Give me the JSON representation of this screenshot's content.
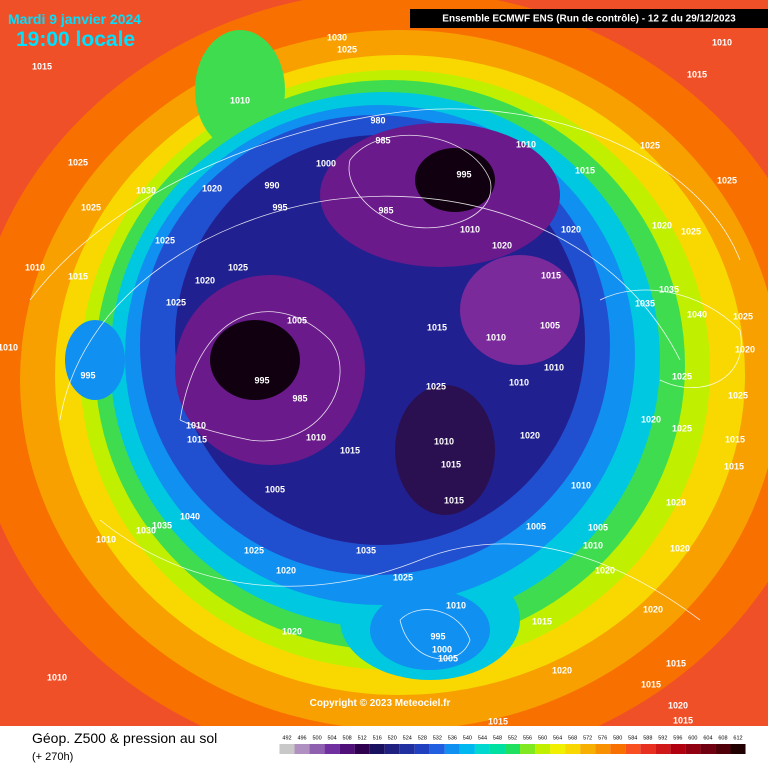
{
  "header": {
    "date": "Mardi 9 janvier 2024",
    "time": "19:00 locale",
    "run": "Ensemble ECMWF ENS  (Run de contrôle)  -  12 Z du 29/12/2023"
  },
  "footer": {
    "title": "Géop. Z500 & pression au sol",
    "lead": "(+ 270h)",
    "copyright": "Copyright © 2023 Meteociel.fr"
  },
  "colorbar": {
    "labels": [
      492,
      496,
      500,
      504,
      508,
      512,
      516,
      520,
      524,
      528,
      532,
      536,
      540,
      544,
      548,
      552,
      556,
      560,
      564,
      568,
      572,
      576,
      580,
      584,
      588,
      592,
      596,
      600,
      604,
      608,
      612
    ],
    "colors": [
      "#c8c8c8",
      "#b090c0",
      "#9060b0",
      "#7030a0",
      "#50107a",
      "#300050",
      "#1a1060",
      "#202080",
      "#2030a0",
      "#2040c0",
      "#2060e0",
      "#1090f0",
      "#00b8f0",
      "#00d8d0",
      "#00e0a0",
      "#20e060",
      "#80e820",
      "#c0f000",
      "#f0f000",
      "#f8d800",
      "#f8b000",
      "#f89000",
      "#f87000",
      "#f85020",
      "#e83020",
      "#d01818",
      "#b00010",
      "#900010",
      "#700010",
      "#500008",
      "#200000"
    ]
  },
  "isobar_labels": [
    1015,
    1030,
    1025,
    1010,
    1015,
    1010,
    980,
    985,
    995,
    1010,
    1025,
    1015,
    1025,
    1025,
    1030,
    1020,
    990,
    995,
    1000,
    985,
    1025,
    1010,
    1015,
    1025,
    1025,
    1020,
    1025,
    1010,
    1020,
    1020,
    1015,
    1020,
    1025,
    1005,
    1015,
    1005,
    1010,
    1010,
    995,
    995,
    985,
    1025,
    1010,
    1010,
    1020,
    1010,
    1015,
    1010,
    1015,
    1010,
    1015,
    1005,
    1040,
    1035,
    1030,
    1010,
    1025,
    1020,
    1035,
    1025,
    1005,
    1015,
    1010,
    1005,
    1020,
    1020,
    1020,
    1025,
    1015,
    1015,
    1010,
    1020,
    1010,
    1015,
    995,
    1000,
    1005,
    1020,
    1020,
    1010,
    1015,
    1020,
    1015,
    1020,
    1015,
    1015,
    1035,
    1035,
    1040,
    1025,
    1020,
    1025,
    1025
  ]
}
